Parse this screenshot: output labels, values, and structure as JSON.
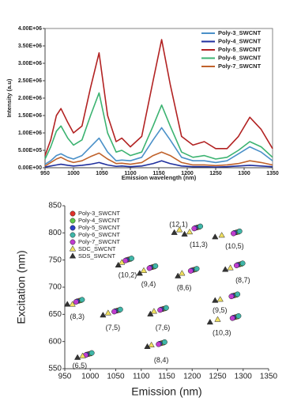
{
  "chart_data": [
    {
      "type": "line",
      "x_label": "Emission wavelength (nm)",
      "y_label": "Intensity (a.u)",
      "x": [
        950,
        960,
        970,
        978,
        990,
        1000,
        1015,
        1030,
        1045,
        1060,
        1075,
        1085,
        1100,
        1120,
        1140,
        1155,
        1170,
        1190,
        1210,
        1230,
        1250,
        1270,
        1290,
        1310,
        1330,
        1350
      ],
      "xlim": [
        950,
        1350
      ],
      "xticks": [
        950,
        1000,
        1050,
        1100,
        1150,
        1200,
        1250,
        1300,
        1350
      ],
      "ylim": [
        0,
        4000000
      ],
      "yticks": [
        {
          "value": 0,
          "label": "0.00E+00"
        },
        {
          "value": 500000,
          "label": "5.00E+05"
        },
        {
          "value": 1000000,
          "label": "1.00E+06"
        },
        {
          "value": 1500000,
          "label": "1.50E+06"
        },
        {
          "value": 2000000,
          "label": "2.00E+06"
        },
        {
          "value": 2500000,
          "label": "2.50E+06"
        },
        {
          "value": 3000000,
          "label": "3.00E+06"
        },
        {
          "value": 3500000,
          "label": "3.50E+06"
        },
        {
          "value": 4000000,
          "label": "4.00E+06"
        }
      ],
      "legend": "upper right",
      "series": [
        {
          "name": "Poly-3_SWCNT",
          "color": "#4a90c8",
          "values": [
            100000,
            200000,
            350000,
            400000,
            300000,
            250000,
            350000,
            600000,
            850000,
            450000,
            200000,
            220000,
            200000,
            300000,
            800000,
            1150000,
            800000,
            300000,
            200000,
            200000,
            150000,
            200000,
            400000,
            600000,
            450000,
            200000
          ]
        },
        {
          "name": "Poly-4_SWCNT",
          "color": "#1f2f9e",
          "values": [
            20000,
            50000,
            80000,
            100000,
            70000,
            50000,
            70000,
            100000,
            150000,
            80000,
            40000,
            50000,
            30000,
            50000,
            120000,
            200000,
            120000,
            50000,
            30000,
            30000,
            20000,
            30000,
            50000,
            70000,
            50000,
            30000
          ]
        },
        {
          "name": "Poly-5_SWCNT",
          "color": "#b22222",
          "values": [
            350000,
            800000,
            1500000,
            1700000,
            1300000,
            1000000,
            1200000,
            2300000,
            3300000,
            1500000,
            750000,
            850000,
            600000,
            900000,
            2500000,
            3680000,
            2400000,
            900000,
            650000,
            750000,
            550000,
            550000,
            900000,
            1450000,
            1100000,
            550000
          ]
        },
        {
          "name": "Poly-6_SWCNT",
          "color": "#3cb371",
          "values": [
            250000,
            600000,
            1050000,
            1200000,
            850000,
            650000,
            800000,
            1500000,
            2150000,
            1000000,
            450000,
            500000,
            350000,
            450000,
            1200000,
            1800000,
            1200000,
            450000,
            300000,
            350000,
            250000,
            300000,
            500000,
            750000,
            600000,
            300000
          ]
        },
        {
          "name": "Poly-7_SWCNT",
          "color": "#c0622b",
          "values": [
            50000,
            150000,
            250000,
            300000,
            200000,
            150000,
            200000,
            320000,
            420000,
            250000,
            120000,
            130000,
            100000,
            150000,
            350000,
            450000,
            350000,
            150000,
            80000,
            80000,
            60000,
            80000,
            120000,
            200000,
            150000,
            80000
          ]
        }
      ]
    },
    {
      "type": "scatter",
      "x_label": "Emission (nm)",
      "y_label": "Excitation (nm)",
      "xlim": [
        950,
        1350
      ],
      "xticks": [
        950,
        1000,
        1050,
        1100,
        1150,
        1200,
        1250,
        1300,
        1350
      ],
      "ylim": [
        550,
        850
      ],
      "yticks": [
        550,
        600,
        650,
        700,
        750,
        800,
        850
      ],
      "legend": "upper left",
      "series": [
        {
          "name": "Poly-3_SWCNT",
          "color": "#e0302a",
          "marker": "circle",
          "x": [
            978,
            997,
            1053,
            1075,
            1122,
            1140,
            1143,
            1210,
            1203,
            1287,
            1293,
            1283,
            1285
          ],
          "values": [
            675,
            577,
            657,
            751,
            737,
            597,
            660,
            810,
            732,
            801,
            742,
            685,
            645
          ]
        },
        {
          "name": "Poly-4_SWCNT",
          "color": "#5cc84a",
          "marker": "circle",
          "x": [
            982,
            1001,
            1057,
            1079,
            1126,
            1144,
            1147,
            1214,
            1207,
            1291,
            1297,
            1287,
            1289
          ],
          "values": [
            676,
            578,
            658,
            752,
            738,
            598,
            661,
            811,
            733,
            802,
            743,
            686,
            646
          ]
        },
        {
          "name": "Poly-5_SWCNT",
          "color": "#2a3fc8",
          "marker": "circle",
          "x": [
            974,
            993,
            1049,
            1071,
            1118,
            1136,
            1139,
            1206,
            1199,
            1283,
            1289,
            1279,
            1281
          ],
          "values": [
            674,
            576,
            656,
            750,
            736,
            596,
            659,
            809,
            731,
            800,
            741,
            684,
            644
          ]
        },
        {
          "name": "Poly-6_SWCNT",
          "color": "#3fb6a8",
          "marker": "circle",
          "x": [
            984,
            1003,
            1059,
            1081,
            1128,
            1146,
            1149,
            1216,
            1209,
            1293,
            1299,
            1289,
            1291
          ],
          "values": [
            677,
            579,
            659,
            753,
            739,
            599,
            662,
            812,
            734,
            803,
            744,
            687,
            647
          ]
        },
        {
          "name": "Poly-7_SWCNT",
          "color": "#c03ccf",
          "marker": "circle",
          "x": [
            972,
            991,
            1047,
            1069,
            1116,
            1134,
            1137,
            1204,
            1197,
            1281,
            1287,
            1277,
            1279
          ],
          "values": [
            673,
            575,
            655,
            749,
            735,
            595,
            658,
            808,
            730,
            799,
            740,
            683,
            643
          ]
        },
        {
          "name": "SDC_SWCNT",
          "color": "#f0e060",
          "marker": "triangle",
          "x": [
            965,
            985,
            1035,
            1062,
            1105,
            1120,
            1125,
            1175,
            1195,
            1180,
            1258,
            1275,
            1255,
            1250
          ],
          "values": [
            668,
            573,
            652,
            745,
            730,
            593,
            655,
            805,
            801,
            725,
            795,
            735,
            677,
            640
          ]
        },
        {
          "name": "SDS_SWCNT",
          "color": "#333333",
          "marker": "triangle",
          "x": [
            955,
            975,
            1025,
            1055,
            1097,
            1112,
            1118,
            1165,
            1185,
            1172,
            1245,
            1265,
            1245,
            1235
          ],
          "values": [
            668,
            570,
            648,
            740,
            725,
            590,
            650,
            800,
            797,
            720,
            792,
            732,
            675,
            635
          ]
        }
      ],
      "annotations": [
        {
          "text": "(8,3)",
          "x": 960,
          "y": 645
        },
        {
          "text": "(6,5)",
          "x": 965,
          "y": 555
        },
        {
          "text": "(7,5)",
          "x": 1030,
          "y": 625
        },
        {
          "text": "(10,2)",
          "x": 1055,
          "y": 722
        },
        {
          "text": "(9,4)",
          "x": 1100,
          "y": 705
        },
        {
          "text": "(8,4)",
          "x": 1125,
          "y": 565
        },
        {
          "text": "(7,6)",
          "x": 1128,
          "y": 625
        },
        {
          "text": "(12,1)",
          "x": 1155,
          "y": 815
        },
        {
          "text": "(11,3)",
          "x": 1195,
          "y": 778
        },
        {
          "text": "(8,6)",
          "x": 1170,
          "y": 698
        },
        {
          "text": "(10,5)",
          "x": 1265,
          "y": 775
        },
        {
          "text": "(8,7)",
          "x": 1285,
          "y": 712
        },
        {
          "text": "(9,5)",
          "x": 1240,
          "y": 657
        },
        {
          "text": "(10,3)",
          "x": 1240,
          "y": 615
        }
      ]
    }
  ]
}
